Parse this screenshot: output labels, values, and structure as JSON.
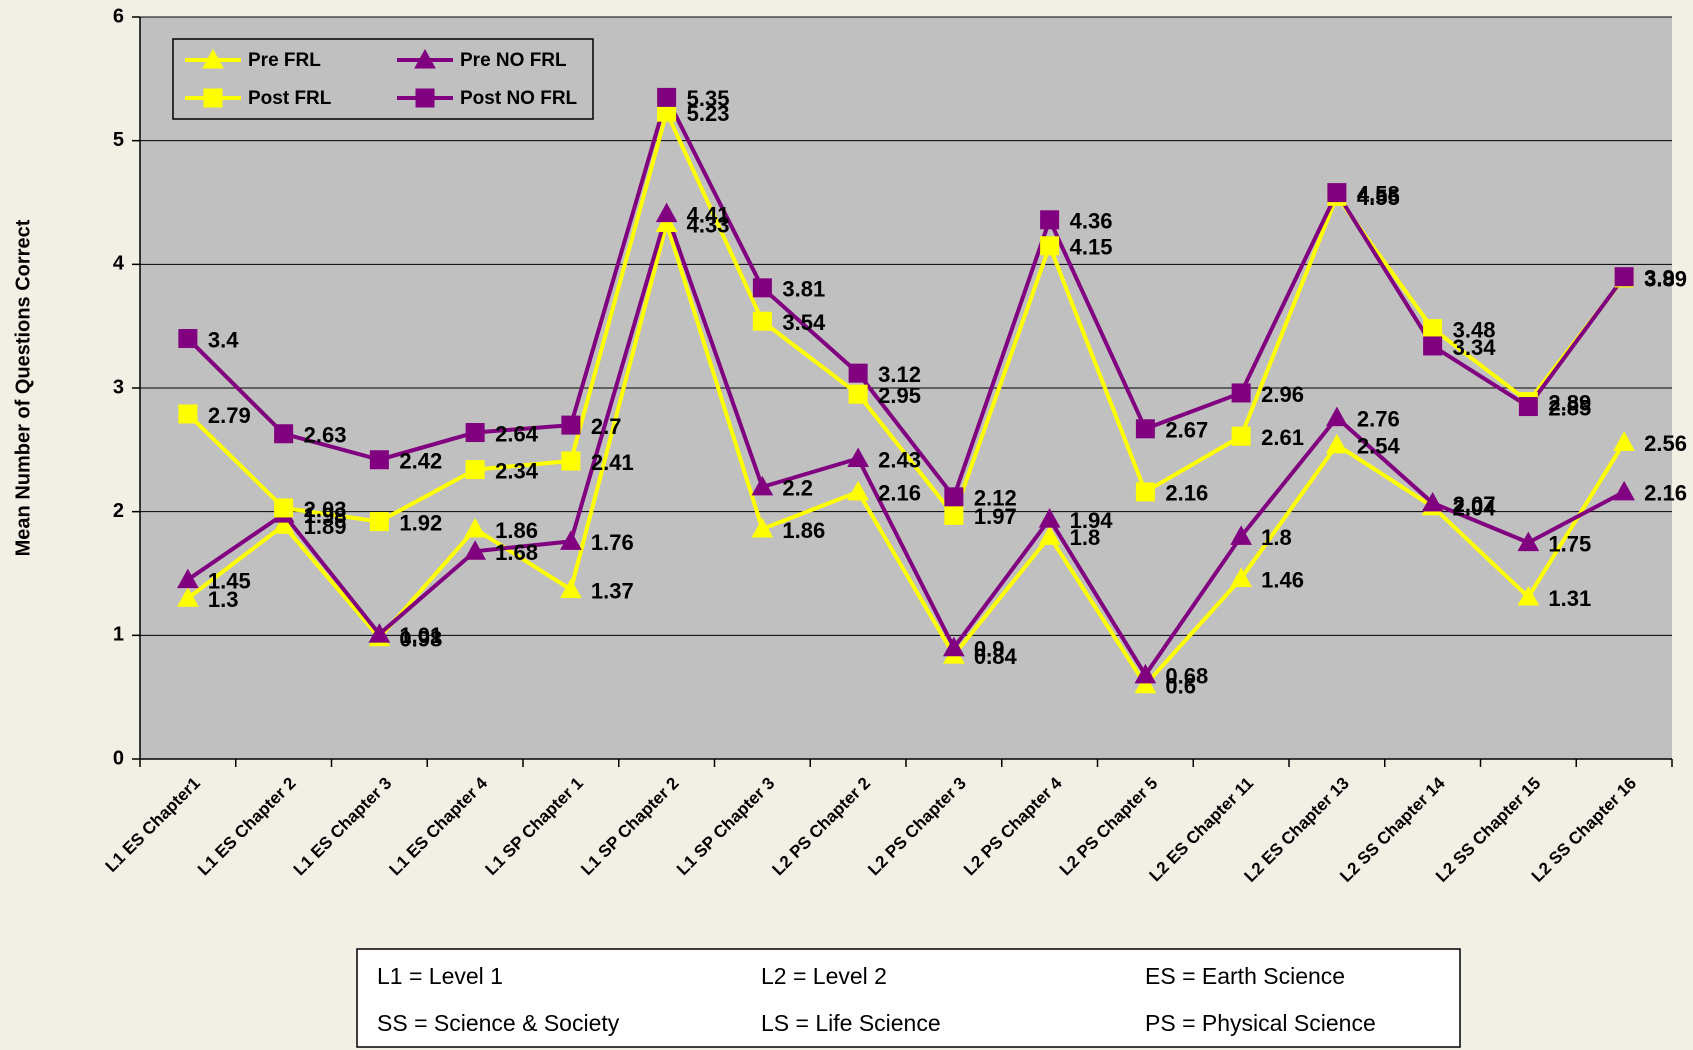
{
  "chart_data": {
    "type": "line",
    "y_label": "Mean Number of Questions Correct",
    "categories": [
      "L1 ES Chapter1",
      "L1 ES Chapter 2",
      "L1 ES Chapter 3",
      "L1 ES Chapter 4",
      "L1 SP Chapter 1",
      "L1 SP Chapter 2",
      "L1 SP Chapter 3",
      "L2 PS Chapter 2",
      "L2 PS Chapter 3",
      "L2 PS Chapter 4",
      "L2 PS Chapter 5",
      "L2 ES Chapter 11",
      "L2 ES Chapter 13",
      "L2 SS Chapter 14",
      "L2 SS Chapter 15",
      "L2 SS Chapter 16"
    ],
    "series": [
      {
        "name": "Pre FRL",
        "color": "#ffff00",
        "marker": "triangle",
        "values": [
          1.3,
          1.89,
          0.98,
          1.86,
          1.37,
          4.33,
          1.86,
          2.16,
          0.84,
          1.8,
          0.6,
          1.46,
          2.54,
          2.04,
          1.31,
          2.56
        ]
      },
      {
        "name": "Pre NO FRL",
        "color": "#800080",
        "marker": "triangle",
        "values": [
          1.45,
          1.98,
          1.01,
          1.68,
          1.76,
          4.41,
          2.2,
          2.43,
          0.9,
          1.94,
          0.68,
          1.8,
          2.76,
          2.07,
          1.75,
          2.16
        ]
      },
      {
        "name": "Post FRL",
        "color": "#ffff00",
        "marker": "square",
        "values": [
          2.79,
          2.03,
          1.92,
          2.34,
          2.41,
          5.23,
          3.54,
          2.95,
          1.97,
          4.15,
          2.16,
          2.61,
          4.55,
          3.48,
          2.89,
          3.89
        ]
      },
      {
        "name": "Post NO FRL",
        "color": "#800080",
        "marker": "square",
        "values": [
          3.4,
          2.63,
          2.42,
          2.64,
          2.7,
          5.35,
          3.81,
          3.12,
          2.12,
          4.36,
          2.67,
          2.96,
          4.58,
          3.34,
          2.85,
          3.9
        ]
      }
    ],
    "ylim": [
      0,
      6
    ],
    "yticks": [
      0,
      1,
      2,
      3,
      4,
      5,
      6
    ],
    "grid": true,
    "legend": "upper left",
    "notes": [
      "L1 = Level 1",
      "L2 = Level 2",
      "ES = Earth Science",
      "SS = Science & Society",
      "LS = Life Science",
      "PS = Physical Science"
    ]
  }
}
